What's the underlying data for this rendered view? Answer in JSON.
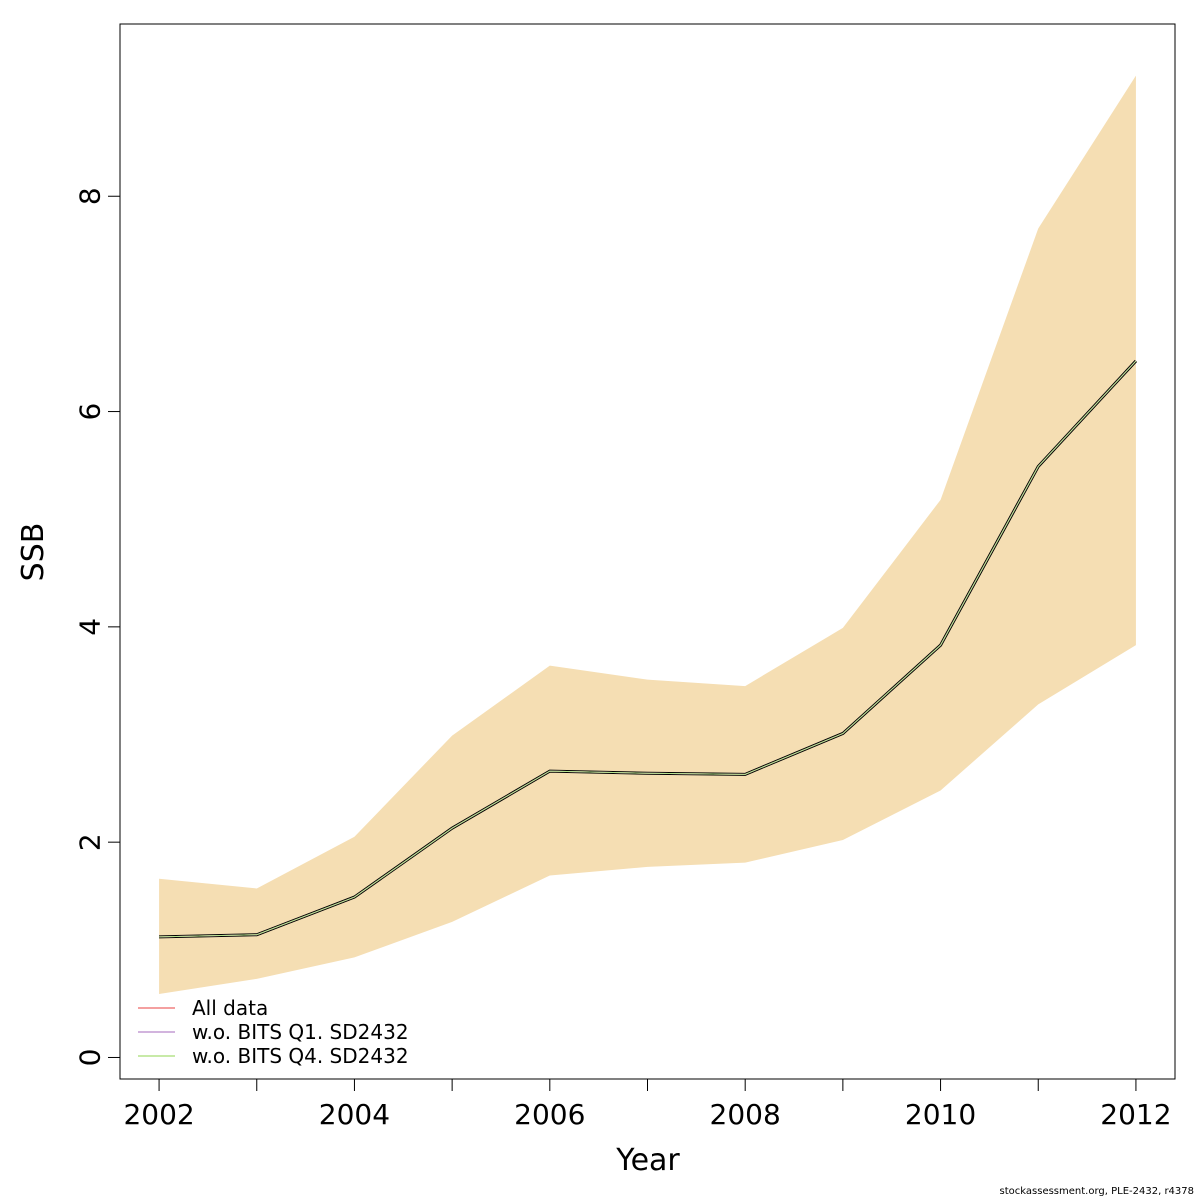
{
  "chart_data": {
    "type": "line",
    "title": "",
    "xlabel": "Year",
    "ylabel": "SSB",
    "xlim": [
      2001.6,
      2012.4
    ],
    "ylim": [
      -0.2,
      9.6
    ],
    "x_ticks": [
      2002,
      2004,
      2006,
      2008,
      2010,
      2012
    ],
    "y_ticks": [
      0,
      2,
      4,
      6,
      8
    ],
    "x": [
      2002,
      2003,
      2004,
      2005,
      2006,
      2007,
      2008,
      2009,
      2010,
      2011,
      2012
    ],
    "band": {
      "lower": [
        0.59,
        0.73,
        0.93,
        1.26,
        1.69,
        1.77,
        1.81,
        2.02,
        2.48,
        3.28,
        3.83
      ],
      "upper": [
        1.66,
        1.57,
        2.05,
        2.99,
        3.64,
        3.51,
        3.45,
        3.99,
        5.18,
        7.7,
        9.12
      ],
      "color": "#f5deb3"
    },
    "series": [
      {
        "name": "All data",
        "values": [
          1.12,
          1.14,
          1.49,
          2.13,
          2.66,
          2.64,
          2.63,
          3.01,
          3.83,
          5.49,
          6.47
        ],
        "color": "#f08080"
      },
      {
        "name": "w.o. BITS Q1. SD2432",
        "values": [
          1.12,
          1.14,
          1.49,
          2.13,
          2.66,
          2.64,
          2.63,
          3.01,
          3.83,
          5.49,
          6.47
        ],
        "color": "#c39bd3"
      },
      {
        "name": "w.o. BITS Q4. SD2432",
        "values": [
          1.12,
          1.14,
          1.49,
          2.13,
          2.66,
          2.64,
          2.63,
          3.01,
          3.83,
          5.49,
          6.47
        ],
        "color": "#b5e48c"
      }
    ],
    "main_line": {
      "values": [
        1.12,
        1.14,
        1.49,
        2.13,
        2.66,
        2.64,
        2.63,
        3.01,
        3.83,
        5.49,
        6.47
      ],
      "color": "#000000"
    },
    "legend_position": "bottom-left",
    "grid": false
  },
  "footer": "stockassessment.org, PLE-2432, r4378"
}
